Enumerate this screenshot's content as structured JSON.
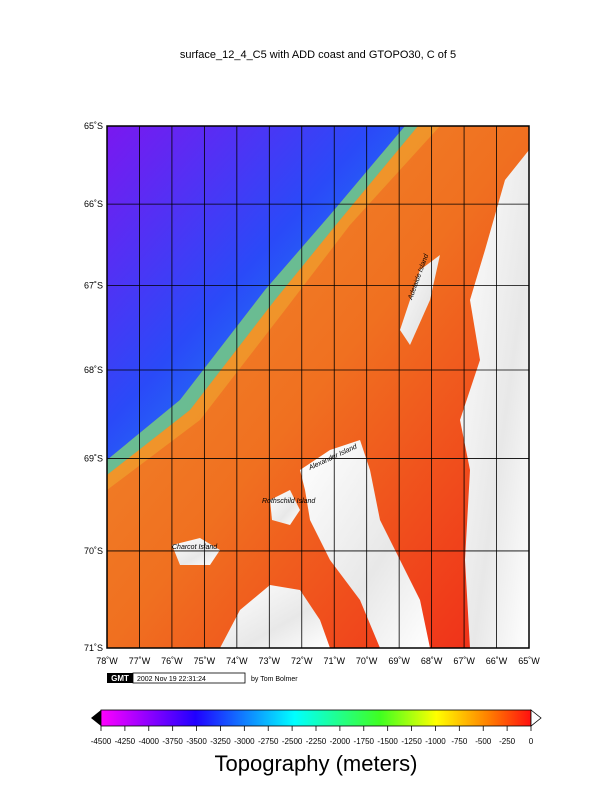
{
  "map": {
    "title": "surface_12_4_C5 with ADD coast and GTOPO30, C of 5",
    "lat_ticks": [
      {
        "value": -65,
        "label": "65˚S"
      },
      {
        "value": -66,
        "label": "66˚S"
      },
      {
        "value": -67,
        "label": "67˚S"
      },
      {
        "value": -68,
        "label": "68˚S"
      },
      {
        "value": -69,
        "label": "69˚S"
      },
      {
        "value": -70,
        "label": "70˚S"
      },
      {
        "value": -71,
        "label": "71˚S"
      }
    ],
    "lon_ticks": [
      {
        "value": -78,
        "label": "78˚W"
      },
      {
        "value": -77,
        "label": "77˚W"
      },
      {
        "value": -76,
        "label": "76˚W"
      },
      {
        "value": -75,
        "label": "75˚W"
      },
      {
        "value": -74,
        "label": "74˚W"
      },
      {
        "value": -73,
        "label": "73˚W"
      },
      {
        "value": -72,
        "label": "72˚W"
      },
      {
        "value": -71,
        "label": "71˚W"
      },
      {
        "value": -70,
        "label": "70˚W"
      },
      {
        "value": -69,
        "label": "69˚W"
      },
      {
        "value": -68,
        "label": "68˚W"
      },
      {
        "value": -67,
        "label": "67˚W"
      },
      {
        "value": -66,
        "label": "66˚W"
      },
      {
        "value": -65,
        "label": "65˚W"
      }
    ],
    "place_labels": [
      "Adelaide Island",
      "Alexander Island",
      "Rothschild Island",
      "Charcot Island"
    ],
    "logo": "GMT",
    "timestamp": "2002 Nov 19 22:31:24",
    "credit": "by Tom Bolmer"
  },
  "colorbar": {
    "ticks": [
      -4500,
      -4250,
      -4000,
      -3750,
      -3500,
      -3250,
      -3000,
      -2750,
      -2500,
      -2250,
      -2000,
      -1750,
      -1500,
      -1250,
      -1000,
      -750,
      -500,
      -250,
      0
    ],
    "label": "Topography (meters)"
  }
}
